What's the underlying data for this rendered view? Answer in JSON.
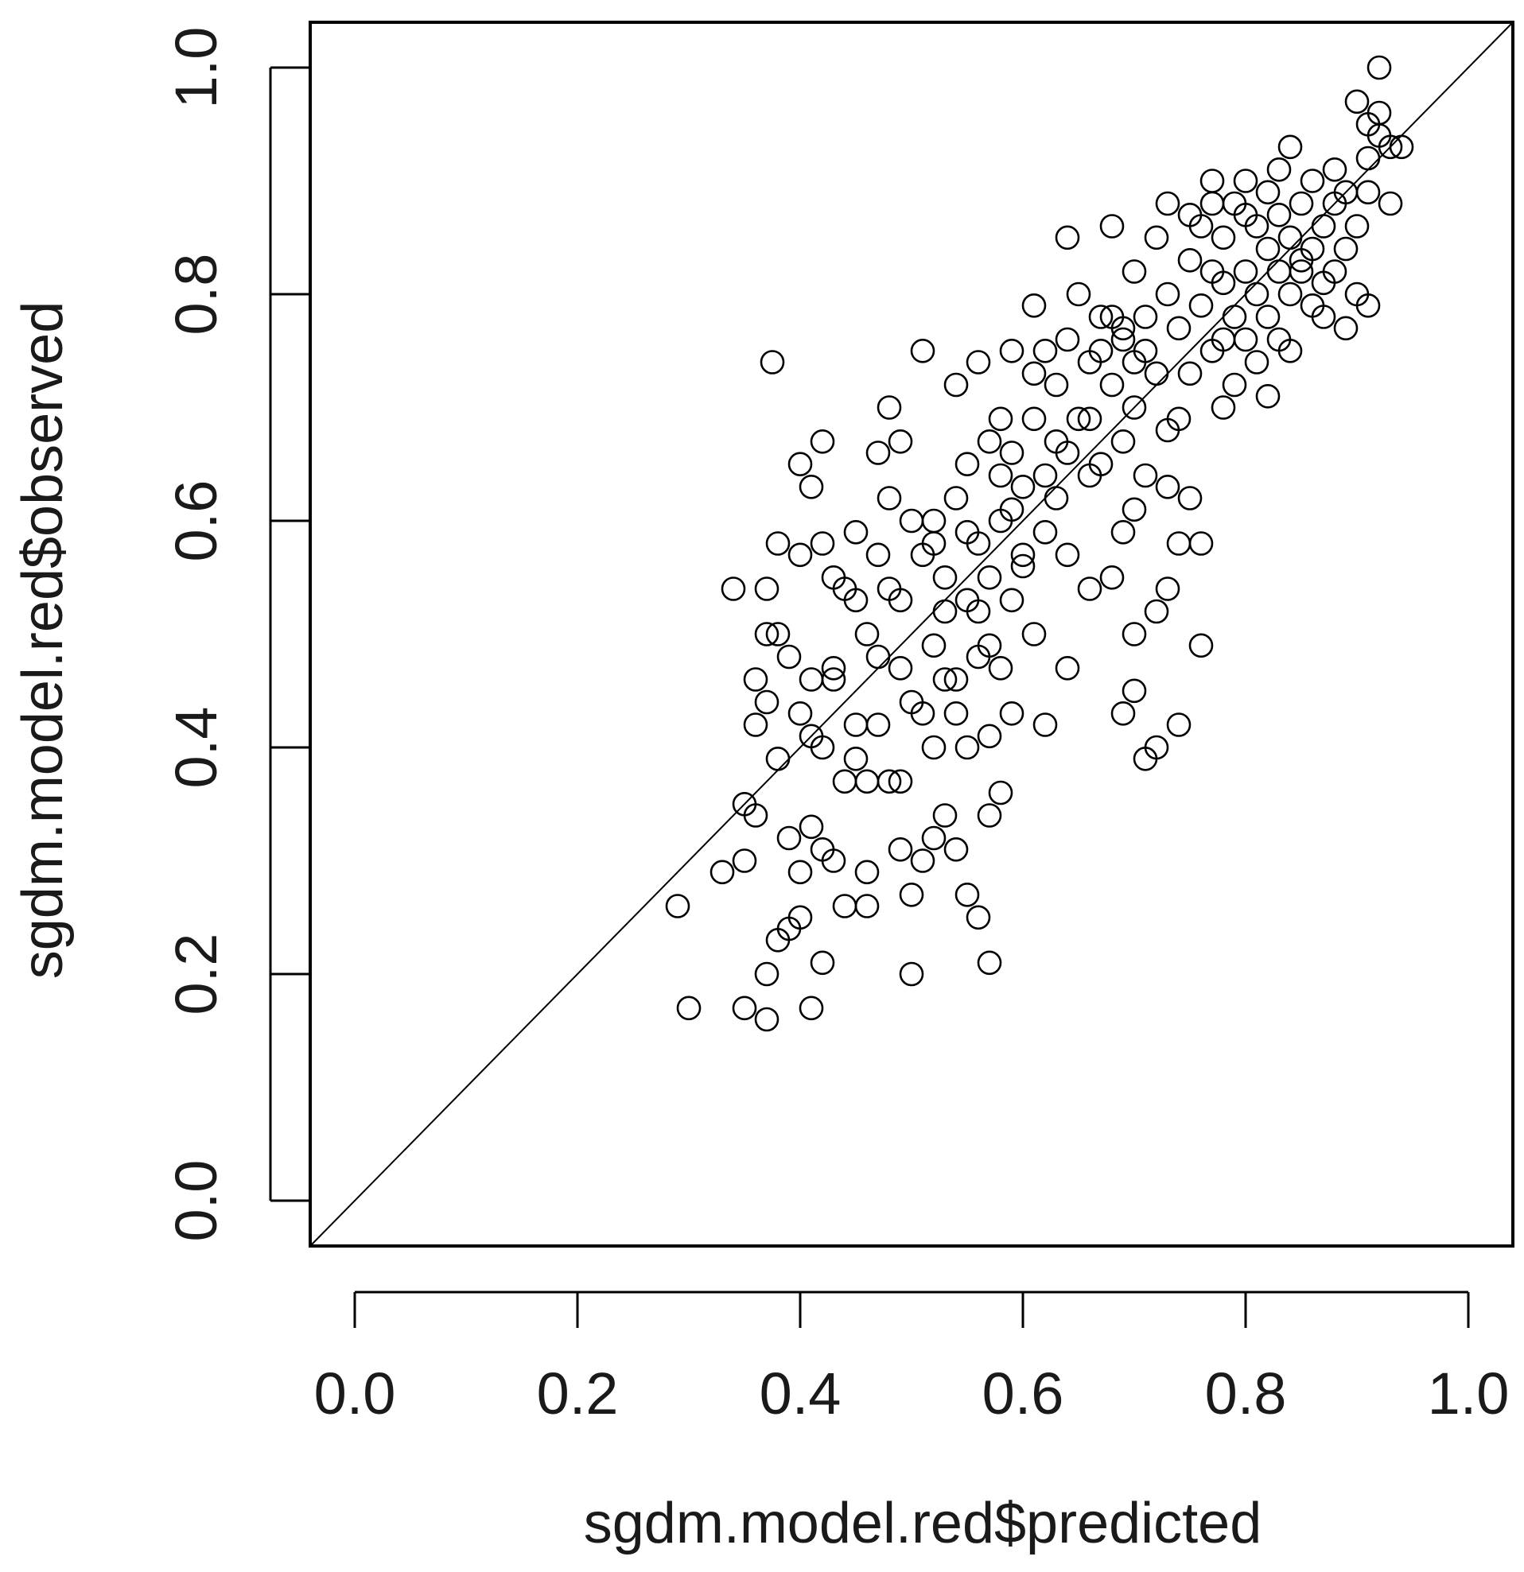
{
  "chart_data": {
    "type": "scatter",
    "title": "",
    "xlabel": "sgdm.model.red$predicted",
    "ylabel": "sgdm.model.red$observed",
    "xlim": [
      -0.04,
      1.04
    ],
    "ylim": [
      -0.04,
      1.04
    ],
    "xticks": [
      "0.0",
      "0.2",
      "0.4",
      "0.6",
      "0.8",
      "1.0"
    ],
    "yticks": [
      "0.0",
      "0.2",
      "0.4",
      "0.6",
      "0.8",
      "1.0"
    ],
    "reference_line": {
      "from": [
        0,
        0
      ],
      "to": [
        1,
        1
      ],
      "color": "#000000"
    },
    "marker": "open-circle",
    "marker_color": "#000000",
    "grid": false,
    "legend": "none",
    "points": [
      [
        0.29,
        0.26
      ],
      [
        0.3,
        0.17
      ],
      [
        0.33,
        0.29
      ],
      [
        0.34,
        0.54
      ],
      [
        0.35,
        0.17
      ],
      [
        0.35,
        0.3
      ],
      [
        0.35,
        0.35
      ],
      [
        0.36,
        0.34
      ],
      [
        0.36,
        0.46
      ],
      [
        0.36,
        0.42
      ],
      [
        0.37,
        0.5
      ],
      [
        0.37,
        0.2
      ],
      [
        0.37,
        0.16
      ],
      [
        0.37,
        0.54
      ],
      [
        0.38,
        0.23
      ],
      [
        0.38,
        0.39
      ],
      [
        0.38,
        0.5
      ],
      [
        0.38,
        0.58
      ],
      [
        0.37,
        0.44
      ],
      [
        0.375,
        0.74
      ],
      [
        0.39,
        0.24
      ],
      [
        0.39,
        0.48
      ],
      [
        0.39,
        0.32
      ],
      [
        0.4,
        0.25
      ],
      [
        0.4,
        0.43
      ],
      [
        0.4,
        0.29
      ],
      [
        0.4,
        0.57
      ],
      [
        0.4,
        0.65
      ],
      [
        0.41,
        0.17
      ],
      [
        0.41,
        0.33
      ],
      [
        0.41,
        0.63
      ],
      [
        0.41,
        0.46
      ],
      [
        0.42,
        0.31
      ],
      [
        0.42,
        0.4
      ],
      [
        0.42,
        0.21
      ],
      [
        0.42,
        0.58
      ],
      [
        0.42,
        0.67
      ],
      [
        0.43,
        0.3
      ],
      [
        0.43,
        0.46
      ],
      [
        0.43,
        0.55
      ],
      [
        0.44,
        0.26
      ],
      [
        0.44,
        0.37
      ],
      [
        0.44,
        0.54
      ],
      [
        0.45,
        0.42
      ],
      [
        0.45,
        0.53
      ],
      [
        0.45,
        0.59
      ],
      [
        0.46,
        0.26
      ],
      [
        0.46,
        0.5
      ],
      [
        0.46,
        0.37
      ],
      [
        0.46,
        0.29
      ],
      [
        0.47,
        0.42
      ],
      [
        0.47,
        0.57
      ],
      [
        0.47,
        0.66
      ],
      [
        0.48,
        0.37
      ],
      [
        0.48,
        0.62
      ],
      [
        0.48,
        0.7
      ],
      [
        0.48,
        0.54
      ],
      [
        0.49,
        0.31
      ],
      [
        0.49,
        0.47
      ],
      [
        0.49,
        0.67
      ],
      [
        0.49,
        0.37
      ],
      [
        0.5,
        0.27
      ],
      [
        0.5,
        0.44
      ],
      [
        0.5,
        0.6
      ],
      [
        0.5,
        0.2
      ],
      [
        0.51,
        0.3
      ],
      [
        0.51,
        0.57
      ],
      [
        0.51,
        0.75
      ],
      [
        0.52,
        0.32
      ],
      [
        0.52,
        0.4
      ],
      [
        0.52,
        0.49
      ],
      [
        0.52,
        0.6
      ],
      [
        0.53,
        0.46
      ],
      [
        0.53,
        0.34
      ],
      [
        0.53,
        0.55
      ],
      [
        0.54,
        0.31
      ],
      [
        0.54,
        0.43
      ],
      [
        0.54,
        0.62
      ],
      [
        0.54,
        0.72
      ],
      [
        0.55,
        0.27
      ],
      [
        0.55,
        0.4
      ],
      [
        0.55,
        0.53
      ],
      [
        0.55,
        0.65
      ],
      [
        0.56,
        0.25
      ],
      [
        0.56,
        0.48
      ],
      [
        0.56,
        0.58
      ],
      [
        0.56,
        0.74
      ],
      [
        0.57,
        0.34
      ],
      [
        0.57,
        0.41
      ],
      [
        0.57,
        0.21
      ],
      [
        0.57,
        0.55
      ],
      [
        0.58,
        0.36
      ],
      [
        0.58,
        0.47
      ],
      [
        0.58,
        0.64
      ],
      [
        0.58,
        0.69
      ],
      [
        0.59,
        0.43
      ],
      [
        0.59,
        0.53
      ],
      [
        0.59,
        0.61
      ],
      [
        0.59,
        0.75
      ],
      [
        0.6,
        0.57
      ],
      [
        0.6,
        0.63
      ],
      [
        0.61,
        0.5
      ],
      [
        0.61,
        0.69
      ],
      [
        0.61,
        0.79
      ],
      [
        0.62,
        0.42
      ],
      [
        0.62,
        0.59
      ],
      [
        0.62,
        0.75
      ],
      [
        0.63,
        0.62
      ],
      [
        0.63,
        0.72
      ],
      [
        0.64,
        0.47
      ],
      [
        0.64,
        0.57
      ],
      [
        0.64,
        0.66
      ],
      [
        0.64,
        0.76
      ],
      [
        0.64,
        0.85
      ],
      [
        0.65,
        0.69
      ],
      [
        0.65,
        0.8
      ],
      [
        0.66,
        0.54
      ],
      [
        0.66,
        0.74
      ],
      [
        0.67,
        0.65
      ],
      [
        0.67,
        0.78
      ],
      [
        0.68,
        0.55
      ],
      [
        0.68,
        0.72
      ],
      [
        0.68,
        0.86
      ],
      [
        0.69,
        0.43
      ],
      [
        0.69,
        0.59
      ],
      [
        0.69,
        0.67
      ],
      [
        0.69,
        0.77
      ],
      [
        0.7,
        0.45
      ],
      [
        0.7,
        0.5
      ],
      [
        0.7,
        0.61
      ],
      [
        0.7,
        0.7
      ],
      [
        0.7,
        0.82
      ],
      [
        0.71,
        0.39
      ],
      [
        0.71,
        0.64
      ],
      [
        0.71,
        0.75
      ],
      [
        0.72,
        0.4
      ],
      [
        0.72,
        0.52
      ],
      [
        0.72,
        0.73
      ],
      [
        0.72,
        0.85
      ],
      [
        0.73,
        0.54
      ],
      [
        0.73,
        0.63
      ],
      [
        0.73,
        0.68
      ],
      [
        0.73,
        0.8
      ],
      [
        0.73,
        0.88
      ],
      [
        0.74,
        0.42
      ],
      [
        0.74,
        0.58
      ],
      [
        0.74,
        0.69
      ],
      [
        0.74,
        0.77
      ],
      [
        0.75,
        0.62
      ],
      [
        0.75,
        0.73
      ],
      [
        0.75,
        0.83
      ],
      [
        0.76,
        0.49
      ],
      [
        0.76,
        0.58
      ],
      [
        0.76,
        0.79
      ],
      [
        0.76,
        0.86
      ],
      [
        0.77,
        0.75
      ],
      [
        0.77,
        0.88
      ],
      [
        0.77,
        0.9
      ],
      [
        0.78,
        0.7
      ],
      [
        0.78,
        0.81
      ],
      [
        0.78,
        0.85
      ],
      [
        0.79,
        0.72
      ],
      [
        0.79,
        0.78
      ],
      [
        0.79,
        0.88
      ],
      [
        0.8,
        0.76
      ],
      [
        0.8,
        0.82
      ],
      [
        0.8,
        0.9
      ],
      [
        0.81,
        0.74
      ],
      [
        0.81,
        0.8
      ],
      [
        0.81,
        0.86
      ],
      [
        0.82,
        0.71
      ],
      [
        0.82,
        0.78
      ],
      [
        0.82,
        0.84
      ],
      [
        0.82,
        0.89
      ],
      [
        0.83,
        0.76
      ],
      [
        0.83,
        0.82
      ],
      [
        0.83,
        0.87
      ],
      [
        0.84,
        0.75
      ],
      [
        0.84,
        0.8
      ],
      [
        0.84,
        0.85
      ],
      [
        0.84,
        0.93
      ],
      [
        0.85,
        0.82
      ],
      [
        0.85,
        0.88
      ],
      [
        0.86,
        0.79
      ],
      [
        0.86,
        0.84
      ],
      [
        0.86,
        0.9
      ],
      [
        0.87,
        0.78
      ],
      [
        0.87,
        0.86
      ],
      [
        0.88,
        0.82
      ],
      [
        0.88,
        0.88
      ],
      [
        0.88,
        0.91
      ],
      [
        0.89,
        0.77
      ],
      [
        0.89,
        0.84
      ],
      [
        0.89,
        0.89
      ],
      [
        0.9,
        0.8
      ],
      [
        0.9,
        0.86
      ],
      [
        0.9,
        0.97
      ],
      [
        0.91,
        0.92
      ],
      [
        0.91,
        0.95
      ],
      [
        0.91,
        0.79
      ],
      [
        0.92,
        0.94
      ],
      [
        0.92,
        1.0
      ],
      [
        0.92,
        0.96
      ],
      [
        0.93,
        0.93
      ],
      [
        0.93,
        0.88
      ],
      [
        0.94,
        0.93
      ],
      [
        0.91,
        0.89
      ],
      [
        0.8,
        0.87
      ],
      [
        0.78,
        0.76
      ],
      [
        0.83,
        0.91
      ],
      [
        0.85,
        0.83
      ],
      [
        0.87,
        0.81
      ],
      [
        0.69,
        0.76
      ],
      [
        0.7,
        0.74
      ],
      [
        0.68,
        0.78
      ],
      [
        0.67,
        0.75
      ],
      [
        0.71,
        0.78
      ],
      [
        0.66,
        0.69
      ],
      [
        0.75,
        0.87
      ],
      [
        0.77,
        0.82
      ],
      [
        0.53,
        0.52
      ],
      [
        0.55,
        0.59
      ],
      [
        0.51,
        0.43
      ],
      [
        0.47,
        0.48
      ],
      [
        0.45,
        0.39
      ],
      [
        0.43,
        0.47
      ],
      [
        0.41,
        0.41
      ],
      [
        0.57,
        0.49
      ],
      [
        0.49,
        0.53
      ],
      [
        0.52,
        0.58
      ],
      [
        0.54,
        0.46
      ],
      [
        0.56,
        0.52
      ],
      [
        0.6,
        0.56
      ],
      [
        0.58,
        0.6
      ],
      [
        0.62,
        0.64
      ],
      [
        0.66,
        0.64
      ],
      [
        0.63,
        0.67
      ],
      [
        0.61,
        0.73
      ],
      [
        0.59,
        0.66
      ],
      [
        0.57,
        0.67
      ]
    ]
  }
}
